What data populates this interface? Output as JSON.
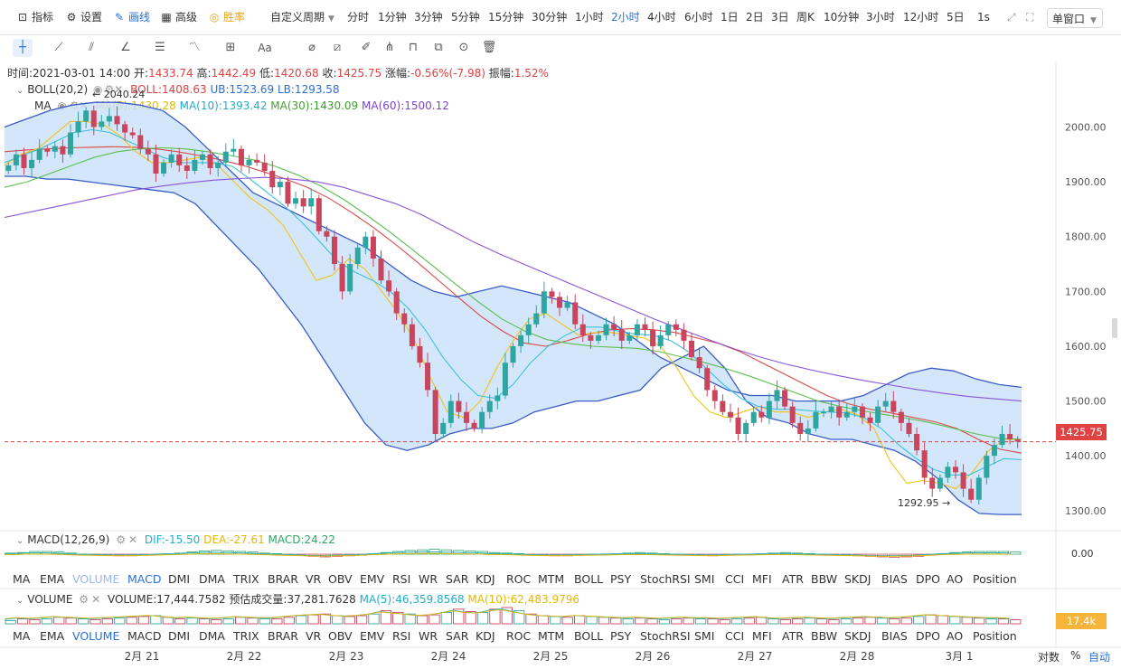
{
  "toolbar": {
    "items": [
      {
        "label": "指标",
        "icon": "chart-icon"
      },
      {
        "label": "设置",
        "icon": "gear-icon"
      },
      {
        "label": "画线",
        "icon": "pen-icon",
        "active": true
      },
      {
        "label": "高级",
        "icon": "grid-icon"
      },
      {
        "label": "胜率",
        "icon": "target-icon"
      }
    ],
    "custom_period": "自定义周期",
    "periods": [
      "分时",
      "1分钟",
      "3分钟",
      "5分钟",
      "15分钟",
      "30分钟",
      "1小时",
      "2小时",
      "4小时",
      "6小时",
      "1日",
      "2日",
      "3日",
      "周K",
      "10分钟",
      "3小时",
      "12小时",
      "5日",
      "1s"
    ],
    "active_period": "2小时",
    "window_mode": "单窗口"
  },
  "ohlc": {
    "time_label": "时间:",
    "time": "2021-03-01 14:00",
    "open_label": "开:",
    "open": "1433.74",
    "high_label": "高:",
    "high": "1442.49",
    "low_label": "低:",
    "low": "1420.68",
    "close_label": "收:",
    "close": "1425.75",
    "change_label": "涨幅:",
    "change": "-0.56%(-7.98)",
    "amp_label": "振幅:",
    "amp": "1.52%"
  },
  "boll": {
    "name": "BOLL(20,2)",
    "boll": "BOLL:1408.63",
    "ub": "UB:1523.69",
    "lb": "LB:1293.58"
  },
  "ma": {
    "name": "MA",
    "ma5": "MA(5):1430.28",
    "ma10": "MA(10):1393.42",
    "ma30": "MA(30):1430.09",
    "ma60": "MA(60):1500.12"
  },
  "macd": {
    "name": "MACD(12,26,9)",
    "dif": "DIF:-15.50",
    "dea": "DEA:-27.61",
    "macd": "MACD:24.22",
    "axis_label": "0.00"
  },
  "volume": {
    "name": "VOLUME",
    "volume": "VOLUME:17,444.7582",
    "forecast": "预估成交量:37,281.7628",
    "ma5": "MA(5):46,359.8568",
    "ma10": "MA(10):62,483.9796",
    "current_tag": "17.4k"
  },
  "indicator_tabs": [
    "MA",
    "EMA",
    "VOLUME",
    "MACD",
    "DMI",
    "DMA",
    "TRIX",
    "BRAR",
    "VR",
    "OBV",
    "EMV",
    "RSI",
    "WR",
    "SAR",
    "KDJ",
    "ROC",
    "MTM",
    "BOLL",
    "PSY",
    "StochRSI",
    "SMI",
    "CCI",
    "MFI",
    "ATR",
    "BBW",
    "SKDJ",
    "BIAS",
    "DPO",
    "AO",
    "Position"
  ],
  "footer": {
    "log": "对数",
    "percent": "%",
    "auto": "自动"
  },
  "colors": {
    "up": "#2fa5a2",
    "down": "#c9455d",
    "ma5": "#f0c419",
    "ma10": "#3cc2dd",
    "ma30": "#5bbf4f",
    "ma60": "#8a55d6",
    "boll_mid": "#d94a48",
    "boll_band": "#3a5cc7",
    "fill": "#cde2f8",
    "accent": "#2a6fdb",
    "last_price": "#e04141"
  },
  "chart_data": {
    "type": "candlestick",
    "x_labels": [
      "2月 21",
      "2月 22",
      "2月 23",
      "2月 24",
      "2月 25",
      "2月 26",
      "2月 27",
      "2月 28",
      "3月 1"
    ],
    "y_ticks": [
      "2000.00",
      "1900.00",
      "1800.00",
      "1700.00",
      "1600.00",
      "1500.00",
      "1400.00",
      "1300.00"
    ],
    "ylim": [
      1275,
      2075
    ],
    "last_price": "1425.75",
    "high_annotation": "2040.24",
    "low_annotation": "1292.95",
    "closes": [
      1930,
      1950,
      1925,
      1940,
      1960,
      1955,
      1965,
      1950,
      1990,
      2010,
      2030,
      2000,
      2010,
      2020,
      2005,
      1990,
      1985,
      1960,
      1950,
      1915,
      1935,
      1950,
      1930,
      1920,
      1940,
      1950,
      1925,
      1935,
      1955,
      1960,
      1930,
      1940,
      1935,
      1920,
      1890,
      1900,
      1860,
      1870,
      1855,
      1870,
      1810,
      1800,
      1750,
      1700,
      1750,
      1780,
      1800,
      1760,
      1720,
      1700,
      1660,
      1640,
      1600,
      1570,
      1520,
      1440,
      1460,
      1500,
      1480,
      1460,
      1450,
      1480,
      1500,
      1510,
      1570,
      1600,
      1620,
      1640,
      1660,
      1700,
      1690,
      1670,
      1680,
      1640,
      1620,
      1610,
      1620,
      1640,
      1630,
      1610,
      1620,
      1640,
      1630,
      1600,
      1620,
      1640,
      1630,
      1610,
      1580,
      1560,
      1520,
      1500,
      1480,
      1470,
      1440,
      1460,
      1480,
      1470,
      1500,
      1520,
      1490,
      1460,
      1440,
      1450,
      1480,
      1480,
      1490,
      1470,
      1480,
      1490,
      1470,
      1460,
      1490,
      1500,
      1480,
      1460,
      1440,
      1410,
      1360,
      1340,
      1360,
      1380,
      1370,
      1340,
      1320,
      1360,
      1400,
      1420,
      1440,
      1430,
      1426
    ],
    "series": [
      {
        "name": "BOLL",
        "key": "boll_mid",
        "values": [
          1955,
          1958,
          1960,
          1962,
          1963,
          1964,
          1963,
          1960,
          1955,
          1948,
          1940,
          1930,
          1918,
          1905,
          1890,
          1870,
          1845,
          1818,
          1788,
          1756,
          1722,
          1688,
          1655,
          1628,
          1606,
          1600,
          1610,
          1622,
          1630,
          1632,
          1630,
          1625,
          1615,
          1605,
          1590,
          1570,
          1550,
          1530,
          1510,
          1495,
          1485,
          1478,
          1470,
          1462,
          1450,
          1430,
          1412,
          1405
        ]
      },
      {
        "name": "UB",
        "key": "boll_band",
        "values": [
          2000,
          2015,
          2030,
          2040,
          2045,
          2045,
          2040,
          2030,
          2000,
          1960,
          1920,
          1880,
          1860,
          1840,
          1820,
          1800,
          1780,
          1750,
          1720,
          1700,
          1690,
          1700,
          1710,
          1700,
          1690,
          1680,
          1660,
          1640,
          1610,
          1580,
          1560,
          1540,
          1520,
          1510,
          1510,
          1500,
          1500,
          1500,
          1510,
          1530,
          1550,
          1560,
          1555,
          1540,
          1530,
          1525
        ]
      },
      {
        "name": "LB",
        "key": "boll_band",
        "values": [
          1910,
          1910,
          1905,
          1905,
          1900,
          1895,
          1890,
          1885,
          1880,
          1860,
          1820,
          1780,
          1740,
          1690,
          1640,
          1580,
          1520,
          1460,
          1420,
          1410,
          1420,
          1440,
          1450,
          1450,
          1460,
          1480,
          1490,
          1500,
          1500,
          1510,
          1520,
          1560,
          1580,
          1600,
          1560,
          1500,
          1470,
          1460,
          1440,
          1430,
          1430,
          1420,
          1410,
          1390,
          1360,
          1320,
          1295,
          1293,
          1293
        ]
      },
      {
        "name": "MA(5)",
        "key": "ma5",
        "values": [
          1930,
          1950,
          1960,
          1985,
          2010,
          2010,
          2005,
          1985,
          1955,
          1935,
          1935,
          1940,
          1945,
          1930,
          1900,
          1870,
          1850,
          1820,
          1770,
          1720,
          1730,
          1760,
          1740,
          1700,
          1660,
          1610,
          1540,
          1480,
          1470,
          1500,
          1560,
          1610,
          1650,
          1660,
          1640,
          1620,
          1625,
          1625,
          1620,
          1615,
          1600,
          1560,
          1510,
          1480,
          1470,
          1480,
          1490,
          1480,
          1480,
          1470,
          1480,
          1485,
          1475,
          1450,
          1390,
          1350,
          1355,
          1350,
          1340,
          1370,
          1410,
          1430,
          1430
        ]
      },
      {
        "name": "MA(10)",
        "key": "ma10",
        "values": [
          1935,
          1948,
          1960,
          1975,
          1990,
          1995,
          1990,
          1975,
          1960,
          1945,
          1935,
          1935,
          1935,
          1928,
          1905,
          1880,
          1855,
          1825,
          1790,
          1755,
          1735,
          1720,
          1700,
          1670,
          1630,
          1580,
          1540,
          1510,
          1505,
          1530,
          1570,
          1600,
          1620,
          1635,
          1635,
          1628,
          1622,
          1620,
          1610,
          1590,
          1560,
          1530,
          1505,
          1490,
          1485,
          1485,
          1482,
          1480,
          1478,
          1470,
          1450,
          1420,
          1395,
          1375,
          1365,
          1365,
          1380,
          1395,
          1393
        ]
      },
      {
        "name": "MA(30)",
        "key": "ma30",
        "values": [
          1890,
          1900,
          1915,
          1930,
          1945,
          1955,
          1960,
          1962,
          1960,
          1955,
          1948,
          1940,
          1928,
          1912,
          1892,
          1868,
          1840,
          1810,
          1778,
          1745,
          1712,
          1680,
          1650,
          1628,
          1612,
          1605,
          1600,
          1598,
          1596,
          1590,
          1580,
          1570,
          1558,
          1545,
          1530,
          1515,
          1500,
          1490,
          1482,
          1475,
          1468,
          1460,
          1450,
          1440,
          1432,
          1430
        ]
      },
      {
        "name": "MA(60)",
        "key": "ma60",
        "values": [
          1835,
          1845,
          1855,
          1865,
          1875,
          1885,
          1892,
          1898,
          1903,
          1906,
          1908,
          1905,
          1900,
          1890,
          1875,
          1860,
          1840,
          1815,
          1790,
          1768,
          1748,
          1728,
          1708,
          1688,
          1668,
          1648,
          1630,
          1612,
          1595,
          1580,
          1567,
          1556,
          1546,
          1537,
          1529,
          1521,
          1514,
          1508,
          1504,
          1500
        ]
      }
    ],
    "macd": [
      0.2,
      0.3,
      0.5,
      0.5,
      0.4,
      0.2,
      0,
      -0.1,
      -0.2,
      -0.3,
      -0.3,
      -0.2,
      -0.1,
      0.1,
      0.2,
      0.4,
      0.6,
      0.7,
      0.6,
      0.5,
      0.4,
      0.2,
      0.1,
      -0.1,
      -0.2,
      -0.4,
      -0.5,
      -0.4,
      -0.3,
      -0.2,
      0.1,
      0.3,
      0.5,
      0.7,
      0.8,
      0.9,
      0.8,
      0.7,
      0.6,
      0.5,
      0.3,
      0.2,
      0.1,
      -0.1,
      -0.2,
      -0.3,
      -0.3,
      -0.2,
      -0.1,
      0,
      0.1,
      0.2,
      0.3,
      0.2,
      0.1,
      0,
      -0.1,
      -0.2,
      -0.3,
      -0.2,
      -0.1,
      0,
      0.1,
      0.2,
      0.3,
      0.2,
      0.1,
      0,
      -0.1,
      -0.2,
      -0.3,
      -0.4,
      -0.5,
      -0.6,
      -0.5,
      -0.4,
      -0.2,
      0.1,
      0.3,
      0.4,
      0.5,
      0.5,
      0.5,
      0.4
    ],
    "volume": [
      0.2,
      0.3,
      0.25,
      0.3,
      0.4,
      0.35,
      0.3,
      0.25,
      0.3,
      0.35,
      0.4,
      0.45,
      0.5,
      0.4,
      0.3,
      0.35,
      0.3,
      0.25,
      0.3,
      0.4,
      0.35,
      0.3,
      0.3,
      0.4,
      0.5,
      0.55,
      0.6,
      0.5,
      0.45,
      0.5,
      0.6,
      0.8,
      0.7,
      0.6,
      0.5,
      0.55,
      0.7,
      0.9,
      0.75,
      0.7,
      0.9,
      1.0,
      0.8,
      0.6,
      0.5,
      0.45,
      0.4,
      0.5,
      0.45,
      0.4,
      0.35,
      0.3,
      0.35,
      0.3,
      0.25,
      0.3,
      0.35,
      0.3,
      0.3,
      0.25,
      0.3,
      0.35,
      0.4,
      0.3,
      0.25,
      0.3,
      0.35,
      0.3,
      0.25,
      0.3,
      0.35,
      0.4,
      0.35,
      0.3,
      0.35,
      0.45,
      0.55,
      0.5,
      0.45,
      0.4,
      0.35,
      0.3,
      0.3,
      0.25
    ]
  }
}
